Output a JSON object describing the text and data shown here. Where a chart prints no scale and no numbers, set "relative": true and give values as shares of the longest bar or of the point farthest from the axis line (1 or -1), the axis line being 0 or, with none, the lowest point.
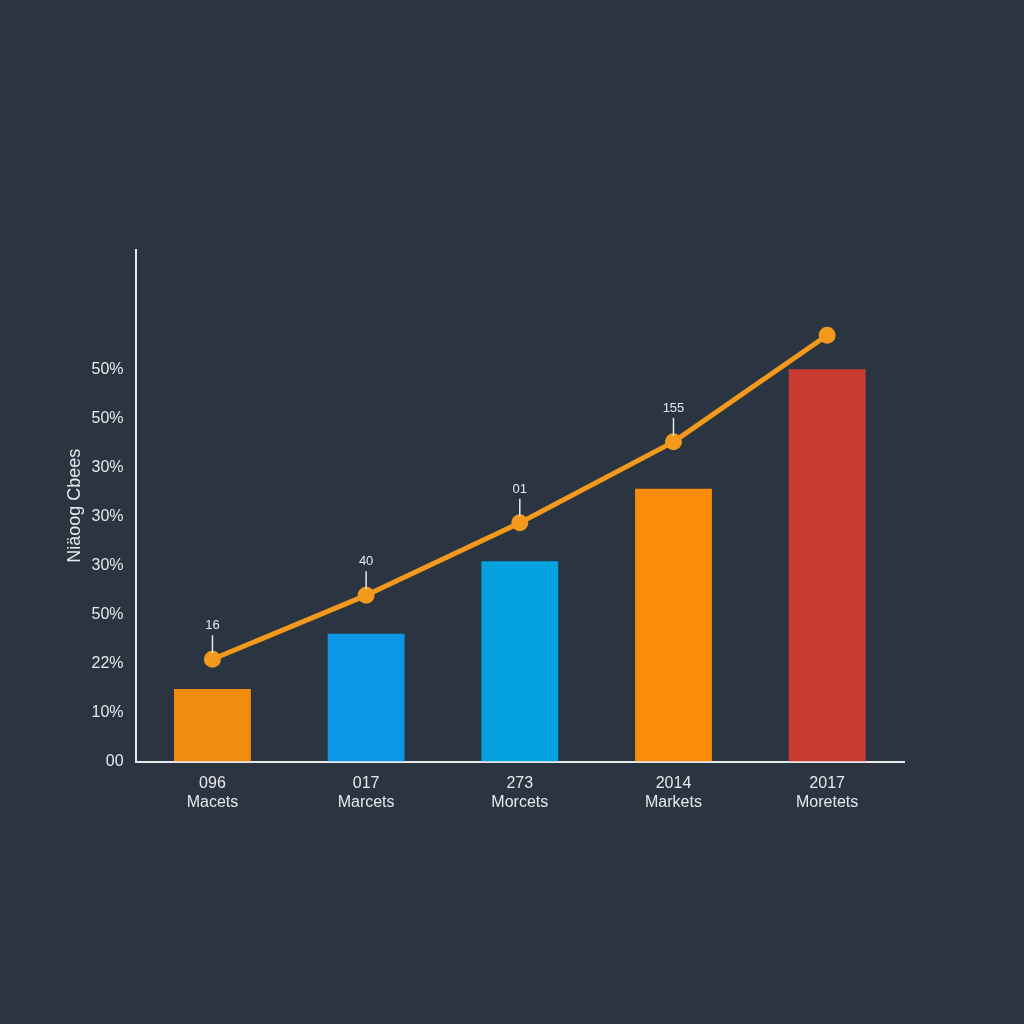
{
  "chart_data": {
    "type": "bar",
    "ylabel": "Niäoog Cbees",
    "relative": true,
    "categories": [
      "096\nMacets",
      "017\nMarcets",
      "273\nMorcets",
      "2014\nMarkets",
      "2017\nMoretets"
    ],
    "series": [
      {
        "values": [
          0.17,
          0.3,
          0.47,
          0.64,
          0.92
        ],
        "colors": [
          "#f28c0f",
          "#0d96e6",
          "#05a2e0",
          "#f98c0a",
          "#c93b30"
        ]
      },
      {
        "type": "line",
        "color": "#f39a1c",
        "values": [
          0.24,
          0.39,
          0.56,
          0.75,
          1
        ]
      }
    ],
    "annotations": [
      "00",
      "10%",
      "22%",
      "50%",
      "30%",
      "30%",
      "30%",
      "50%",
      "50%",
      {
        "text": "16",
        "x": "096\nMacets",
        "y": 0.24
      },
      {
        "text": "40",
        "x": "017\nMarcets",
        "y": 0.39
      },
      {
        "text": "01",
        "x": "273\nMorcets",
        "y": 0.56
      },
      {
        "text": "155",
        "x": "2014\nMarkets",
        "y": 0.75
      }
    ],
    "legend": false,
    "marker": "circle"
  }
}
